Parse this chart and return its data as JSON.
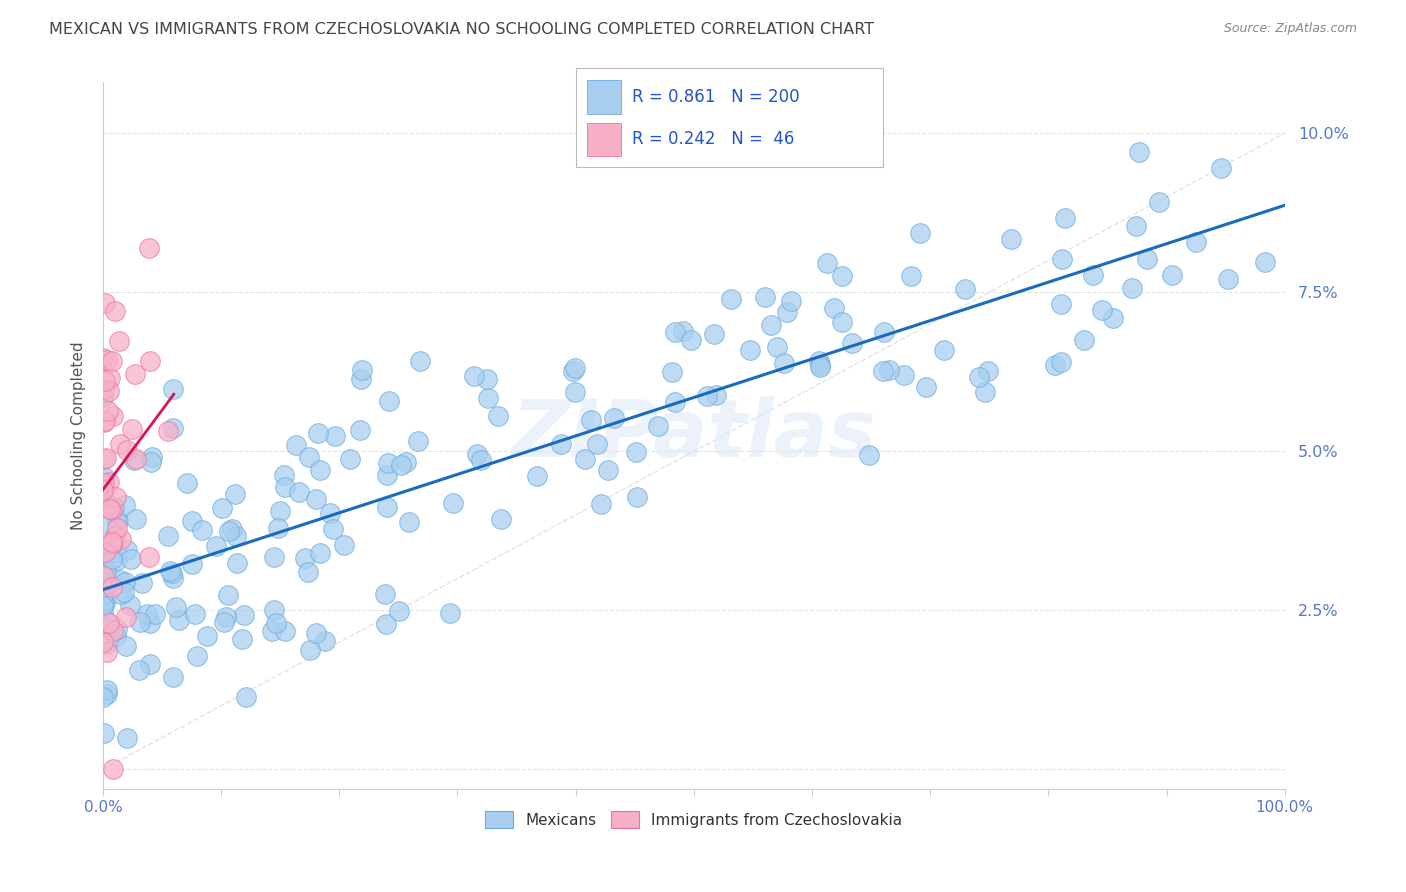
{
  "title": "MEXICAN VS IMMIGRANTS FROM CZECHOSLOVAKIA NO SCHOOLING COMPLETED CORRELATION CHART",
  "source": "Source: ZipAtlas.com",
  "ylabel": "No Schooling Completed",
  "blue_R": 0.861,
  "blue_N": 200,
  "pink_R": 0.242,
  "pink_N": 46,
  "blue_color": "#a8cff0",
  "pink_color": "#f8b0c8",
  "blue_edge": "#6aaade",
  "pink_edge": "#f070a0",
  "line_blue": "#1a6abf",
  "line_pink": "#dd1155",
  "diag_color": "#dddddd",
  "watermark": "ZIPatlas",
  "background": "#ffffff",
  "title_color": "#444444",
  "title_fontsize": 11.5,
  "source_color": "#888888",
  "legend_label_blue": "Mexicans",
  "legend_label_pink": "Immigrants from Czechoslovakia",
  "ytick_color": "#5577cc",
  "xtick_color": "#5577cc",
  "seed": 7
}
